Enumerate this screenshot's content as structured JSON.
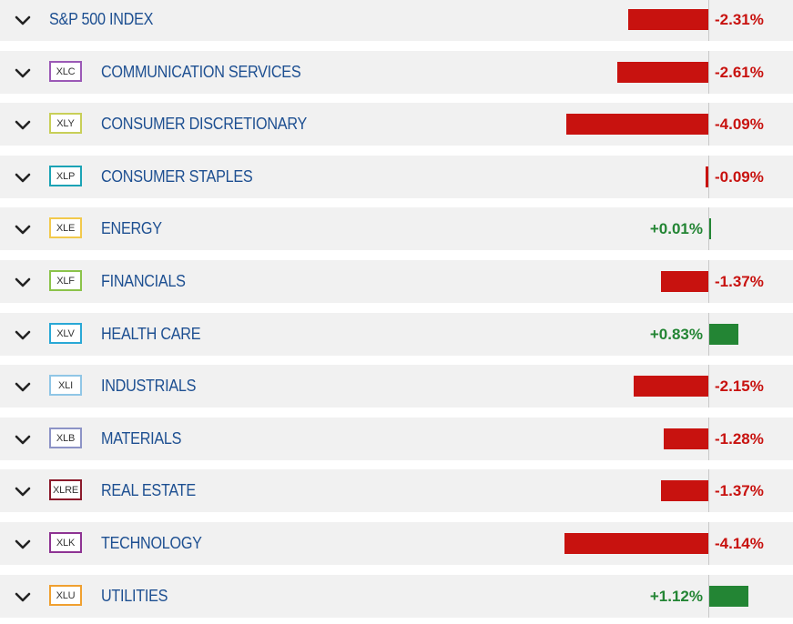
{
  "rows": [
    {
      "ticker": "",
      "ticker_color": "",
      "name": "S&P 500 INDEX",
      "change": -2.31,
      "change_label": "-2.31%"
    },
    {
      "ticker": "XLC",
      "ticker_color": "#9b59b6",
      "name": "COMMUNICATION SERVICES",
      "change": -2.61,
      "change_label": "-2.61%"
    },
    {
      "ticker": "XLY",
      "ticker_color": "#c8cf58",
      "name": "CONSUMER DISCRETIONARY",
      "change": -4.09,
      "change_label": "-4.09%"
    },
    {
      "ticker": "XLP",
      "ticker_color": "#1ba3b5",
      "name": "CONSUMER STAPLES",
      "change": -0.09,
      "change_label": "-0.09%"
    },
    {
      "ticker": "XLE",
      "ticker_color": "#f2c94c",
      "name": "ENERGY",
      "change": 0.01,
      "change_label": "+0.01%"
    },
    {
      "ticker": "XLF",
      "ticker_color": "#8bc34a",
      "name": "FINANCIALS",
      "change": -1.37,
      "change_label": "-1.37%"
    },
    {
      "ticker": "XLV",
      "ticker_color": "#29a8d6",
      "name": "HEALTH CARE",
      "change": 0.83,
      "change_label": "+0.83%"
    },
    {
      "ticker": "XLI",
      "ticker_color": "#90c6e6",
      "name": "INDUSTRIALS",
      "change": -2.15,
      "change_label": "-2.15%"
    },
    {
      "ticker": "XLB",
      "ticker_color": "#8c93c6",
      "name": "MATERIALS",
      "change": -1.28,
      "change_label": "-1.28%"
    },
    {
      "ticker": "XLRE",
      "ticker_color": "#8b1a2b",
      "name": "REAL ESTATE",
      "change": -1.37,
      "change_label": "-1.37%"
    },
    {
      "ticker": "XLK",
      "ticker_color": "#8e3393",
      "name": "TECHNOLOGY",
      "change": -4.14,
      "change_label": "-4.14%"
    },
    {
      "ticker": "XLU",
      "ticker_color": "#f0a030",
      "name": "UTILITIES",
      "change": 1.12,
      "change_label": "+1.12%"
    }
  ],
  "colors": {
    "negative": "#c8120f",
    "positive": "#238534",
    "name_text": "#1d4f91",
    "row_bg": "#f1f1f1"
  },
  "icons": {
    "expand": "chevron-down-icon"
  }
}
